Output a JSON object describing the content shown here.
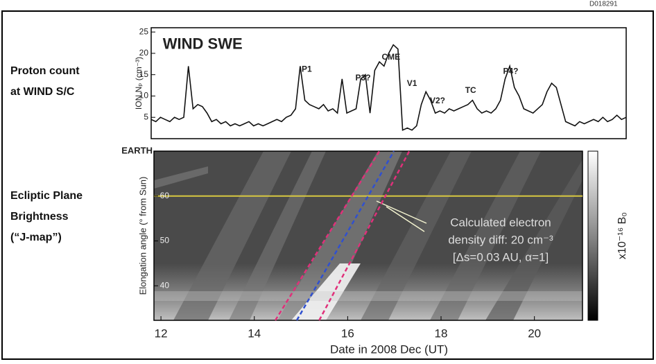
{
  "figure_id": "D018291",
  "chart_data": [
    {
      "type": "line",
      "title": "WIND SWE",
      "panel_label": [
        "Proton count",
        "at WIND S/C"
      ],
      "ylabel": "ION Nₚ (cm⁻³)",
      "color": "#111111",
      "xlim": [
        11.8,
        22.0
      ],
      "ylim": [
        0,
        26
      ],
      "yticks": [
        5,
        10,
        15,
        20,
        25
      ],
      "x": [
        11.8,
        11.9,
        12.0,
        12.1,
        12.2,
        12.3,
        12.4,
        12.5,
        12.6,
        12.7,
        12.8,
        12.9,
        13.0,
        13.1,
        13.2,
        13.3,
        13.4,
        13.5,
        13.6,
        13.7,
        13.8,
        13.9,
        14.0,
        14.1,
        14.2,
        14.3,
        14.4,
        14.5,
        14.6,
        14.7,
        14.8,
        14.9,
        15.0,
        15.1,
        15.2,
        15.3,
        15.4,
        15.5,
        15.6,
        15.7,
        15.8,
        15.9,
        16.0,
        16.1,
        16.2,
        16.3,
        16.4,
        16.5,
        16.6,
        16.7,
        16.8,
        16.9,
        17.0,
        17.1,
        17.2,
        17.3,
        17.4,
        17.5,
        17.6,
        17.7,
        17.8,
        17.9,
        18.0,
        18.1,
        18.2,
        18.3,
        18.4,
        18.5,
        18.6,
        18.7,
        18.8,
        18.9,
        19.0,
        19.1,
        19.2,
        19.3,
        19.4,
        19.5,
        19.6,
        19.7,
        19.8,
        19.9,
        20.0,
        20.1,
        20.2,
        20.3,
        20.4,
        20.5,
        20.6,
        20.7,
        20.8,
        20.9,
        21.0,
        21.1,
        21.2,
        21.3,
        21.4,
        21.5,
        21.6,
        21.7,
        21.8,
        21.9,
        22.0
      ],
      "values": [
        4.5,
        4,
        5,
        4.5,
        4,
        5,
        4.5,
        5,
        17,
        7,
        8,
        7.5,
        6,
        4,
        4.5,
        3.5,
        4,
        3,
        3.5,
        3,
        3.5,
        4,
        3,
        3.5,
        3,
        3.5,
        4,
        4.5,
        4,
        5,
        5.5,
        7,
        17,
        9,
        8,
        7.5,
        7,
        8,
        6.5,
        7,
        6,
        14,
        6,
        6.5,
        7,
        14,
        15,
        6,
        16,
        18,
        17,
        20,
        22,
        21,
        2,
        2.5,
        2,
        3,
        8,
        11,
        9,
        6,
        6.5,
        6,
        7,
        6.5,
        7,
        7.5,
        8,
        9,
        7,
        6,
        6.5,
        6,
        7,
        9,
        14,
        17,
        12,
        10,
        7,
        6.5,
        6,
        7,
        8,
        11,
        13,
        12,
        8,
        4,
        3.5,
        3,
        4,
        3.5,
        4,
        4.5,
        4,
        5,
        4,
        4.5,
        5.5,
        4.5,
        5
      ],
      "annotations": [
        {
          "text": "P1",
          "x": 15.14,
          "y": 16.2
        },
        {
          "text": "P3?",
          "x": 16.35,
          "y": 14.2
        },
        {
          "text": "CME",
          "x": 16.95,
          "y": 19
        },
        {
          "text": "V1",
          "x": 17.4,
          "y": 12.9
        },
        {
          "text": "V2?",
          "x": 17.95,
          "y": 8.8
        },
        {
          "text": "TC",
          "x": 18.66,
          "y": 11.2
        },
        {
          "text": "P4?",
          "x": 19.52,
          "y": 15.7
        }
      ]
    },
    {
      "type": "image",
      "panel_label": [
        "Ecliptic Plane",
        "Brightness",
        "(“J-map”)"
      ],
      "ylabel": "Elongation angle (° from Sun)",
      "xlabel": "Date in 2008 Dec (UT)",
      "colorbar_label": "x10⁻¹⁶ B₀",
      "xlim": [
        11.85,
        21.03
      ],
      "ylim": [
        32.3,
        70
      ],
      "xticks": [
        12,
        14,
        16,
        18,
        20
      ],
      "yticks": [
        40,
        50,
        60,
        {
          "value": 70,
          "label": "EARTH"
        }
      ],
      "reference_line": {
        "y": 60,
        "color": "#d8c840"
      },
      "tracks": [
        {
          "x": [
            14.45,
            16.68
          ],
          "y": [
            32.3,
            70
          ],
          "color": "#e0307a",
          "dash": true
        },
        {
          "x": [
            14.91,
            16.99
          ],
          "y": [
            32.3,
            70
          ],
          "color": "#3050d0",
          "dash": true
        },
        {
          "x": [
            15.39,
            17.32
          ],
          "y": [
            32.3,
            70
          ],
          "color": "#e0307a",
          "dash": true
        }
      ],
      "annotation": [
        "Calculated electron",
        "density diff: 20 cm⁻³",
        "[Δs=0.03 AU, α=1]"
      ]
    }
  ]
}
